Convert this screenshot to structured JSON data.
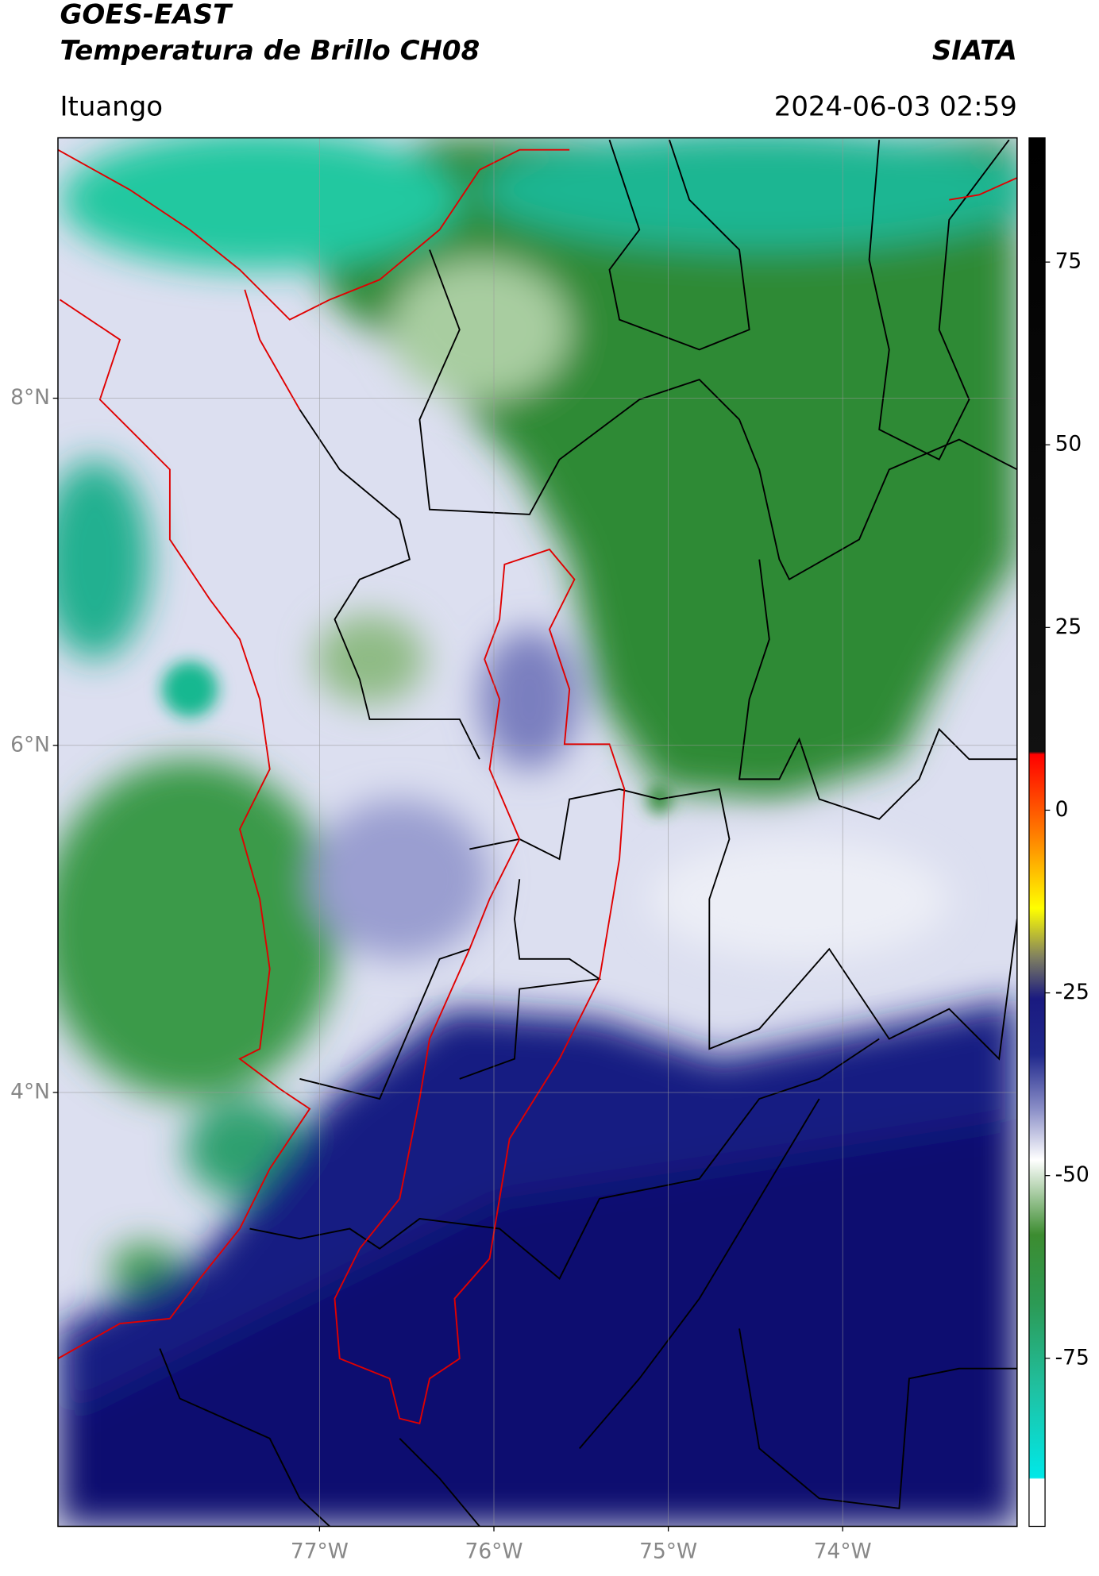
{
  "chart_data": {
    "type": "map",
    "title": "GOES-EAST",
    "subtitle": "Temperatura de Brillo CH08",
    "source": "SIATA",
    "location": "Ituango",
    "timestamp": "2024-06-03 02:59",
    "xlim": [
      -78.5,
      -73.0
    ],
    "ylim": [
      1.5,
      9.5
    ],
    "xticks": [
      {
        "value": -77,
        "label": "77°W"
      },
      {
        "value": -76,
        "label": "76°W"
      },
      {
        "value": -75,
        "label": "75°W"
      },
      {
        "value": -74,
        "label": "74°W"
      }
    ],
    "yticks": [
      {
        "value": 8,
        "label": "8°N"
      },
      {
        "value": 6,
        "label": "6°N"
      },
      {
        "value": 4,
        "label": "4°N"
      }
    ],
    "grid": true,
    "colorbar": {
      "lim": [
        -98,
        92
      ],
      "ticks": [
        75,
        50,
        25,
        0,
        -25,
        -50,
        -75
      ]
    }
  }
}
